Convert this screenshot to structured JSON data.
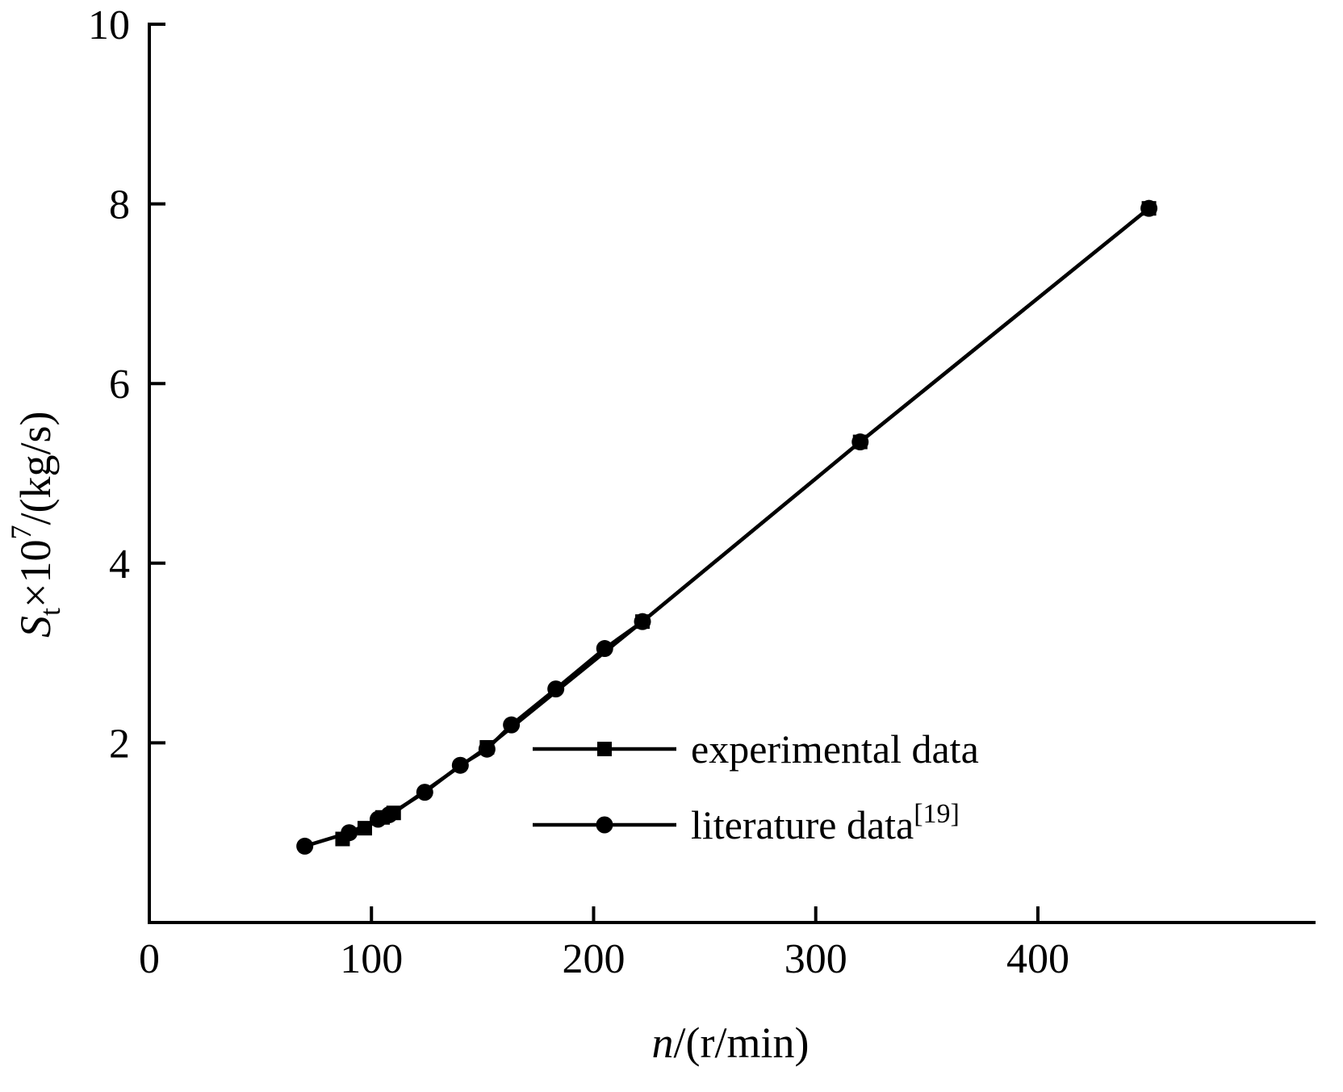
{
  "figure": {
    "kind": "scientific line chart",
    "background": "#ffffff",
    "line_color": "#000000"
  },
  "chart_data": {
    "type": "line",
    "title": "",
    "xlabel_parts": {
      "var": "n",
      "rest": "/(r/min)"
    },
    "ylabel_parts": {
      "var": "S",
      "sub": "t",
      "mult": "×10",
      "exp": "7",
      "rest": "/(kg/s)"
    },
    "xlim": [
      0,
      525
    ],
    "ylim": [
      0,
      10
    ],
    "x_ticks": [
      0,
      100,
      200,
      300,
      400
    ],
    "y_ticks": [
      2,
      4,
      6,
      8,
      10
    ],
    "grid": false,
    "legend": {
      "position": "inside-lower-center",
      "entries": [
        {
          "label": "experimental data",
          "sup": "",
          "marker": "square"
        },
        {
          "label": "literature data",
          "sup": "[19]",
          "marker": "circle"
        }
      ]
    },
    "series": [
      {
        "name": "experimental data",
        "marker": "square",
        "color": "#000000",
        "x": [
          87,
          97,
          105,
          110,
          152,
          222,
          320,
          450
        ],
        "y": [
          0.93,
          1.05,
          1.17,
          1.22,
          1.95,
          3.35,
          5.35,
          7.95
        ]
      },
      {
        "name": "literature data",
        "name_sup": "[19]",
        "marker": "circle",
        "color": "#000000",
        "x": [
          70,
          90,
          103,
          108,
          124,
          140,
          152,
          163,
          183,
          205,
          222,
          320,
          450
        ],
        "y": [
          0.85,
          1.0,
          1.15,
          1.2,
          1.45,
          1.75,
          1.93,
          2.2,
          2.6,
          3.05,
          3.35,
          5.35,
          7.95
        ]
      }
    ]
  }
}
